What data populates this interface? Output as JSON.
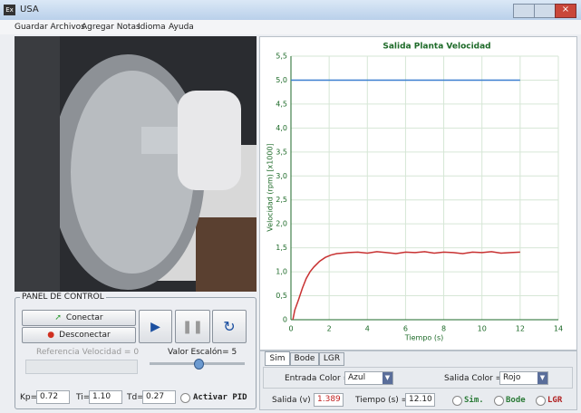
{
  "window": {
    "title": "USA"
  },
  "menu": [
    "Guardar Archivos",
    "Agregar Notas",
    "Idioma",
    "Ayuda"
  ],
  "panel": {
    "title": "PANEL DE CONTROL",
    "connect": "Conectar",
    "disconnect": "Desconectar",
    "reference": "Referencia Velocidad = 0",
    "step": "Valor Escalón= 5",
    "kp_label": "Kp=",
    "kp": "0.72",
    "ti_label": "Ti=",
    "ti": "1.10",
    "td_label": "Td=",
    "td": "0.27",
    "pid": "Activar PID"
  },
  "tabs": [
    "Sim",
    "Bode",
    "LGR"
  ],
  "options": {
    "input_color_label": "Entrada Color =",
    "input_color": "Azul",
    "output_color_label": "Salida Color =",
    "output_color": "Rojo",
    "output_label": "Salida (v) =",
    "output": "1.389",
    "time_label": "Tiempo (s) =",
    "time": "12.10",
    "radios": [
      "Sim.",
      "Bode",
      "LGR"
    ]
  },
  "chart_data": {
    "type": "line",
    "title": "Salida Planta Velocidad",
    "x_label": "Tiempo (s)",
    "y_label": "Velocidad (rpm) [x1000]",
    "xlim": [
      0,
      14
    ],
    "xticks": [
      0,
      2,
      4,
      6,
      8,
      10,
      12,
      14
    ],
    "ylim": [
      0,
      5.5
    ],
    "yticks": [
      0,
      {
        "value": 0.5,
        "label": "0,5"
      },
      {
        "value": 1,
        "label": "1,0"
      },
      {
        "value": 1.5,
        "label": "1,5"
      },
      {
        "value": 2,
        "label": "2,0"
      },
      {
        "value": 2.5,
        "label": "2,5"
      },
      {
        "value": 3,
        "label": "3,0"
      },
      {
        "value": 3.5,
        "label": "3,5"
      },
      {
        "value": 4,
        "label": "4,0"
      },
      {
        "value": 4.5,
        "label": "4,5"
      },
      {
        "value": 5,
        "label": "5,0"
      },
      {
        "value": 5.5,
        "label": "5,5"
      }
    ],
    "grid": true,
    "series": [
      {
        "color": "#3a7fd0",
        "x": [
          0,
          12
        ],
        "values": [
          5,
          5
        ]
      },
      {
        "color": "#c83232",
        "x": [
          0.1,
          0.2,
          0.4,
          0.6,
          0.8,
          1.0,
          1.2,
          1.5,
          1.8,
          2.1,
          2.4,
          2.7,
          3.0,
          3.5,
          4,
          4.5,
          5,
          5.5,
          6,
          6.5,
          7,
          7.5,
          8,
          8.5,
          9,
          9.5,
          10,
          10.5,
          11,
          11.5,
          12
        ],
        "values": [
          0,
          0.2,
          0.42,
          0.66,
          0.86,
          1.0,
          1.1,
          1.22,
          1.3,
          1.35,
          1.38,
          1.39,
          1.4,
          1.41,
          1.39,
          1.42,
          1.4,
          1.38,
          1.41,
          1.4,
          1.42,
          1.39,
          1.41,
          1.4,
          1.38,
          1.41,
          1.4,
          1.42,
          1.39,
          1.4,
          1.41
        ]
      }
    ]
  }
}
